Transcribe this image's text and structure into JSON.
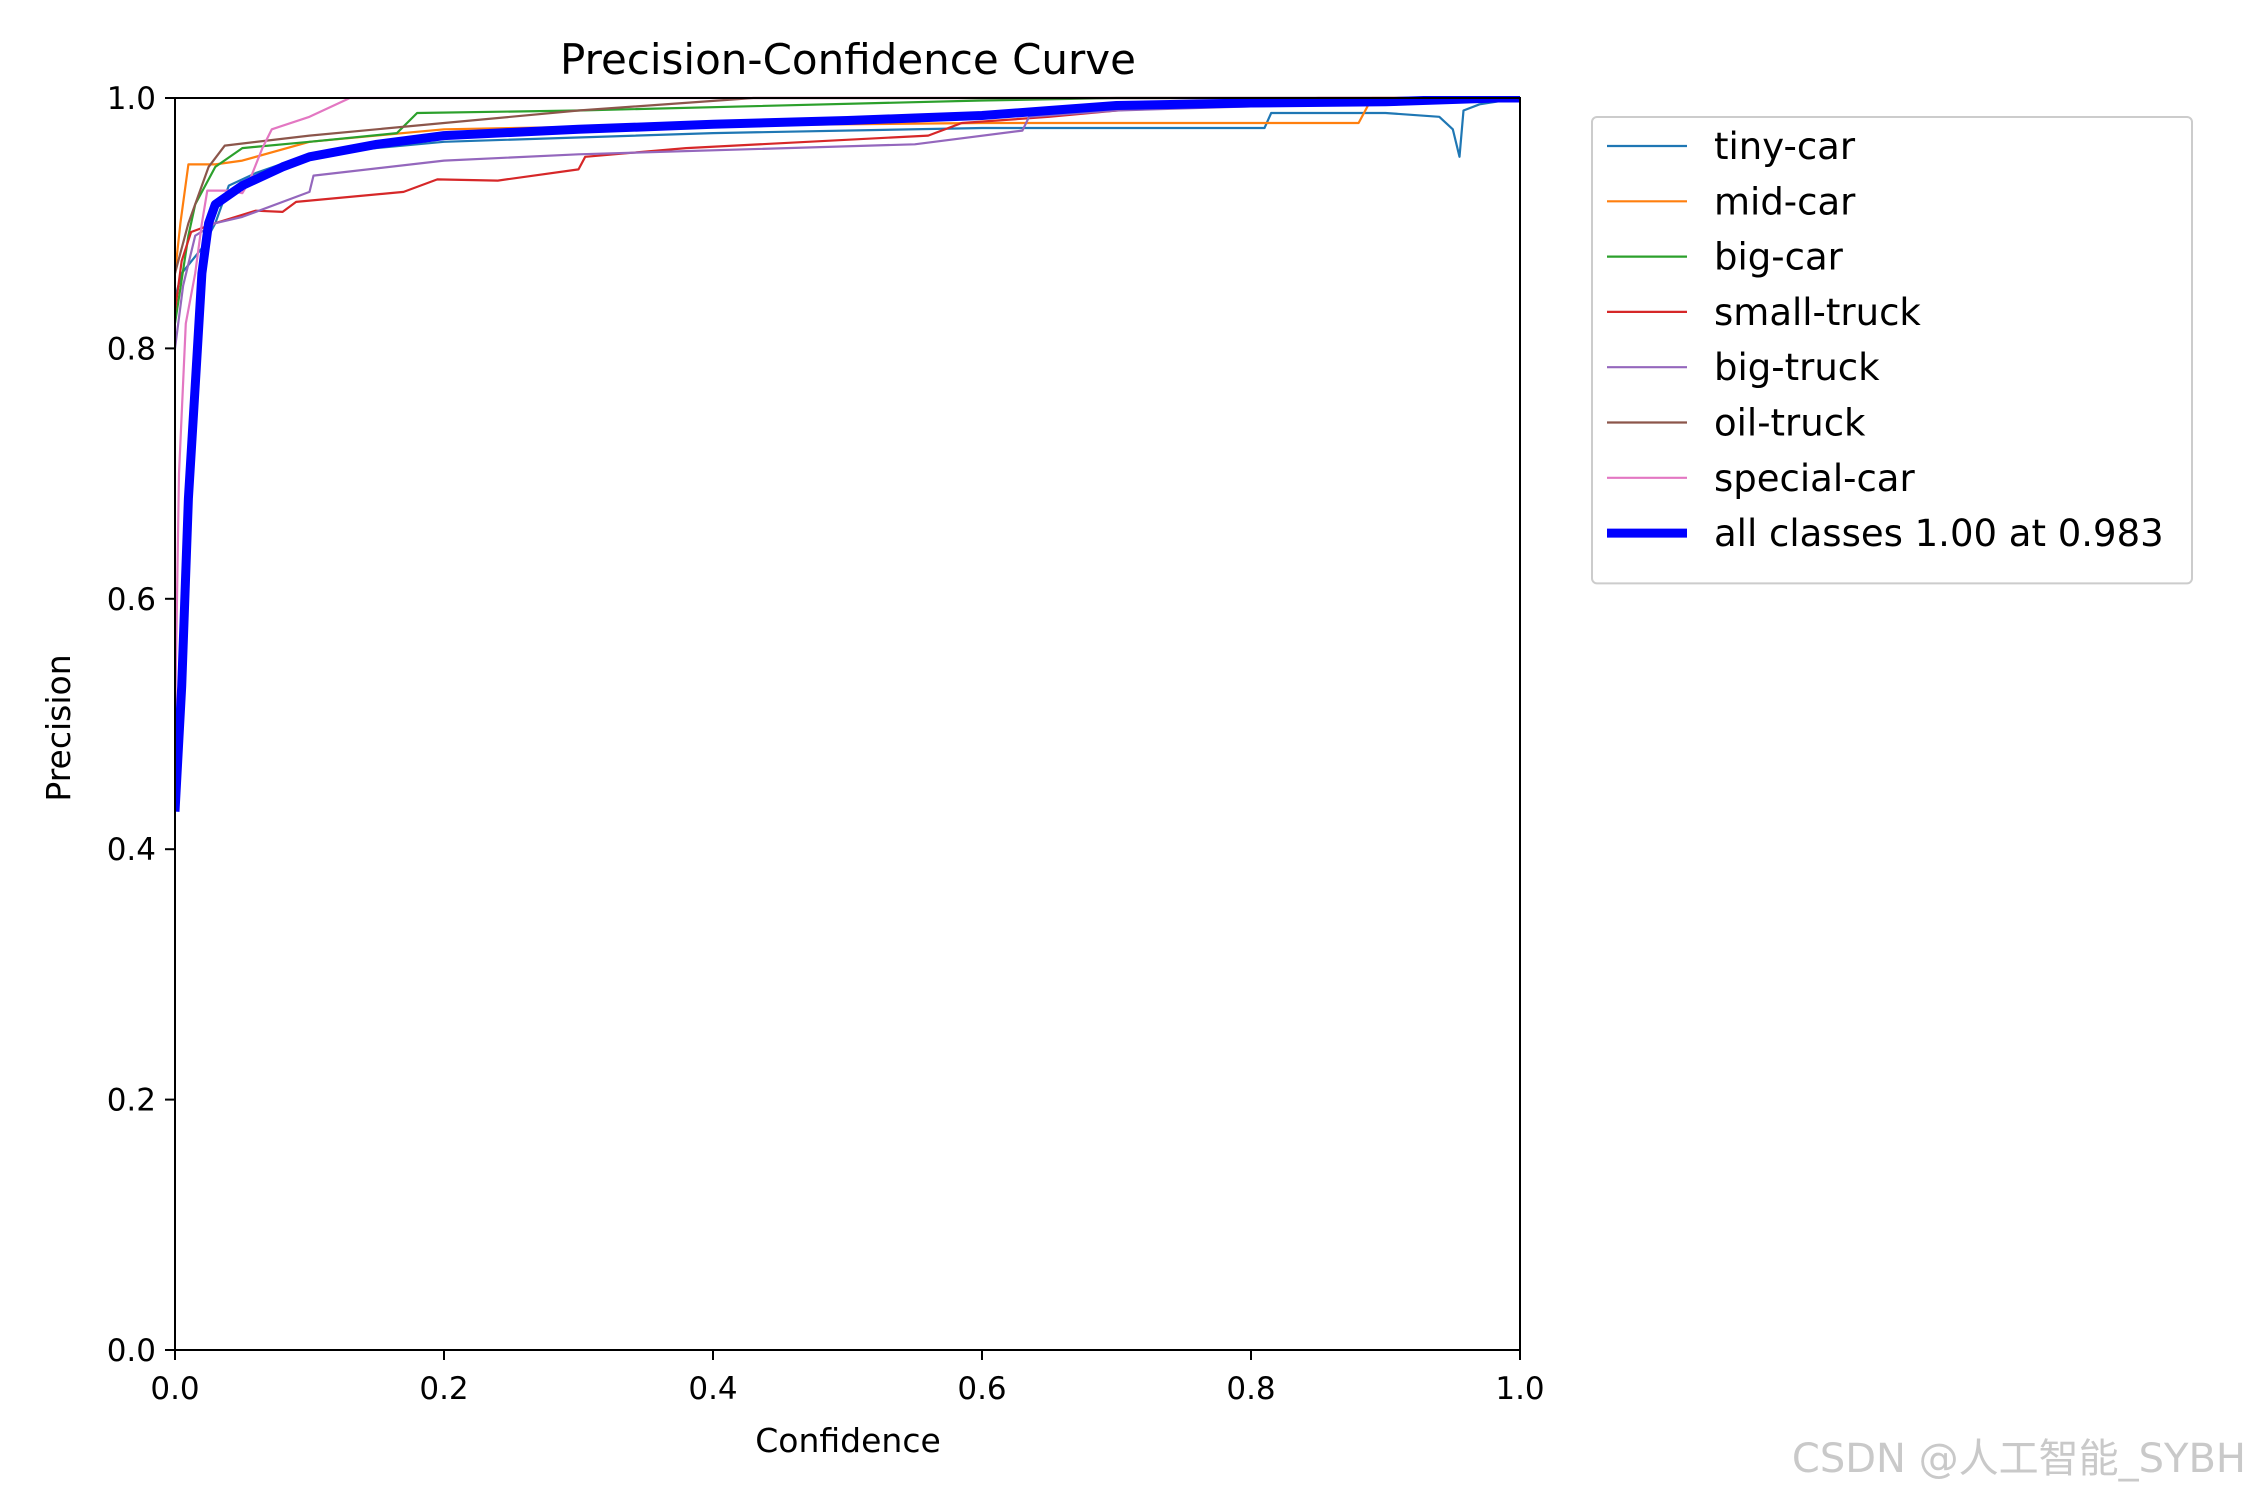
{
  "chart_data": {
    "type": "line",
    "title": "Precision-Confidence Curve",
    "xlabel": "Confidence",
    "ylabel": "Precision",
    "xlim": [
      0,
      1
    ],
    "ylim": [
      0,
      1
    ],
    "xticks": [
      0.0,
      0.2,
      0.4,
      0.6,
      0.8,
      1.0
    ],
    "yticks": [
      0.0,
      0.2,
      0.4,
      0.6,
      0.8,
      1.0
    ],
    "tick_labels_x": [
      "0.0",
      "0.2",
      "0.4",
      "0.6",
      "0.8",
      "1.0"
    ],
    "tick_labels_y": [
      "0.0",
      "0.2",
      "0.4",
      "0.6",
      "0.8",
      "1.0"
    ],
    "grid": false,
    "legend_position": "outside-right-top",
    "series": [
      {
        "name": "tiny-car",
        "color": "#1f77b4",
        "points": [
          [
            0.0,
            0.84
          ],
          [
            0.005,
            0.86
          ],
          [
            0.02,
            0.88
          ],
          [
            0.03,
            0.9
          ],
          [
            0.04,
            0.93
          ],
          [
            0.06,
            0.94
          ],
          [
            0.1,
            0.955
          ],
          [
            0.2,
            0.965
          ],
          [
            0.4,
            0.972
          ],
          [
            0.6,
            0.976
          ],
          [
            0.81,
            0.976
          ],
          [
            0.815,
            0.988
          ],
          [
            0.9,
            0.988
          ],
          [
            0.94,
            0.985
          ],
          [
            0.95,
            0.975
          ],
          [
            0.955,
            0.953
          ],
          [
            0.958,
            0.99
          ],
          [
            0.97,
            0.995
          ],
          [
            1.0,
            1.0
          ]
        ]
      },
      {
        "name": "mid-car",
        "color": "#ff7f0e",
        "points": [
          [
            0.0,
            0.86
          ],
          [
            0.004,
            0.9
          ],
          [
            0.01,
            0.947
          ],
          [
            0.03,
            0.947
          ],
          [
            0.05,
            0.95
          ],
          [
            0.1,
            0.965
          ],
          [
            0.2,
            0.975
          ],
          [
            0.3,
            0.977
          ],
          [
            0.5,
            0.979
          ],
          [
            0.6,
            0.98
          ],
          [
            0.88,
            0.98
          ],
          [
            0.89,
            1.0
          ],
          [
            1.0,
            1.0
          ]
        ]
      },
      {
        "name": "big-car",
        "color": "#2ca02c",
        "points": [
          [
            0.0,
            0.82
          ],
          [
            0.01,
            0.89
          ],
          [
            0.015,
            0.915
          ],
          [
            0.03,
            0.945
          ],
          [
            0.05,
            0.96
          ],
          [
            0.1,
            0.965
          ],
          [
            0.165,
            0.972
          ],
          [
            0.18,
            0.988
          ],
          [
            0.3,
            0.99
          ],
          [
            0.6,
            0.998
          ],
          [
            0.7,
            1.0
          ],
          [
            1.0,
            1.0
          ]
        ]
      },
      {
        "name": "small-truck",
        "color": "#d62728",
        "points": [
          [
            0.0,
            0.83
          ],
          [
            0.005,
            0.87
          ],
          [
            0.012,
            0.893
          ],
          [
            0.03,
            0.9
          ],
          [
            0.06,
            0.91
          ],
          [
            0.08,
            0.909
          ],
          [
            0.09,
            0.917
          ],
          [
            0.17,
            0.925
          ],
          [
            0.195,
            0.935
          ],
          [
            0.24,
            0.934
          ],
          [
            0.3,
            0.943
          ],
          [
            0.305,
            0.953
          ],
          [
            0.38,
            0.96
          ],
          [
            0.56,
            0.97
          ],
          [
            0.585,
            0.98
          ],
          [
            0.65,
            0.985
          ],
          [
            0.75,
            0.995
          ],
          [
            0.85,
            1.0
          ],
          [
            1.0,
            1.0
          ]
        ]
      },
      {
        "name": "big-truck",
        "color": "#9467bd",
        "points": [
          [
            0.0,
            0.8
          ],
          [
            0.006,
            0.85
          ],
          [
            0.015,
            0.89
          ],
          [
            0.03,
            0.9
          ],
          [
            0.05,
            0.905
          ],
          [
            0.1,
            0.925
          ],
          [
            0.103,
            0.938
          ],
          [
            0.2,
            0.95
          ],
          [
            0.3,
            0.955
          ],
          [
            0.55,
            0.963
          ],
          [
            0.63,
            0.974
          ],
          [
            0.635,
            0.985
          ],
          [
            0.7,
            0.99
          ],
          [
            0.85,
            0.995
          ],
          [
            1.0,
            1.0
          ]
        ]
      },
      {
        "name": "oil-truck",
        "color": "#8c564b",
        "points": [
          [
            0.0,
            0.86
          ],
          [
            0.01,
            0.9
          ],
          [
            0.025,
            0.945
          ],
          [
            0.037,
            0.962
          ],
          [
            0.1,
            0.97
          ],
          [
            0.2,
            0.98
          ],
          [
            0.3,
            0.99
          ],
          [
            0.43,
            1.0
          ],
          [
            1.0,
            1.0
          ]
        ]
      },
      {
        "name": "special-car",
        "color": "#e377c2",
        "points": [
          [
            0.0,
            0.5
          ],
          [
            0.003,
            0.7
          ],
          [
            0.008,
            0.82
          ],
          [
            0.015,
            0.86
          ],
          [
            0.02,
            0.9
          ],
          [
            0.024,
            0.926
          ],
          [
            0.04,
            0.926
          ],
          [
            0.05,
            0.924
          ],
          [
            0.055,
            0.933
          ],
          [
            0.065,
            0.96
          ],
          [
            0.072,
            0.975
          ],
          [
            0.1,
            0.985
          ],
          [
            0.13,
            1.0
          ],
          [
            1.0,
            1.0
          ]
        ]
      },
      {
        "name": "all classes 1.00 at 0.983",
        "color": "#0000ff",
        "bold": true,
        "points": [
          [
            0.0,
            0.43
          ],
          [
            0.005,
            0.53
          ],
          [
            0.01,
            0.68
          ],
          [
            0.015,
            0.77
          ],
          [
            0.02,
            0.86
          ],
          [
            0.025,
            0.9
          ],
          [
            0.03,
            0.915
          ],
          [
            0.05,
            0.93
          ],
          [
            0.08,
            0.945
          ],
          [
            0.1,
            0.953
          ],
          [
            0.15,
            0.963
          ],
          [
            0.2,
            0.97
          ],
          [
            0.3,
            0.975
          ],
          [
            0.4,
            0.979
          ],
          [
            0.5,
            0.982
          ],
          [
            0.55,
            0.984
          ],
          [
            0.6,
            0.986
          ],
          [
            0.65,
            0.99
          ],
          [
            0.7,
            0.994
          ],
          [
            0.8,
            0.996
          ],
          [
            0.9,
            0.997
          ],
          [
            0.983,
            1.0
          ],
          [
            1.0,
            1.0
          ]
        ]
      }
    ]
  },
  "watermark": "CSDN @人工智能_SYBH"
}
